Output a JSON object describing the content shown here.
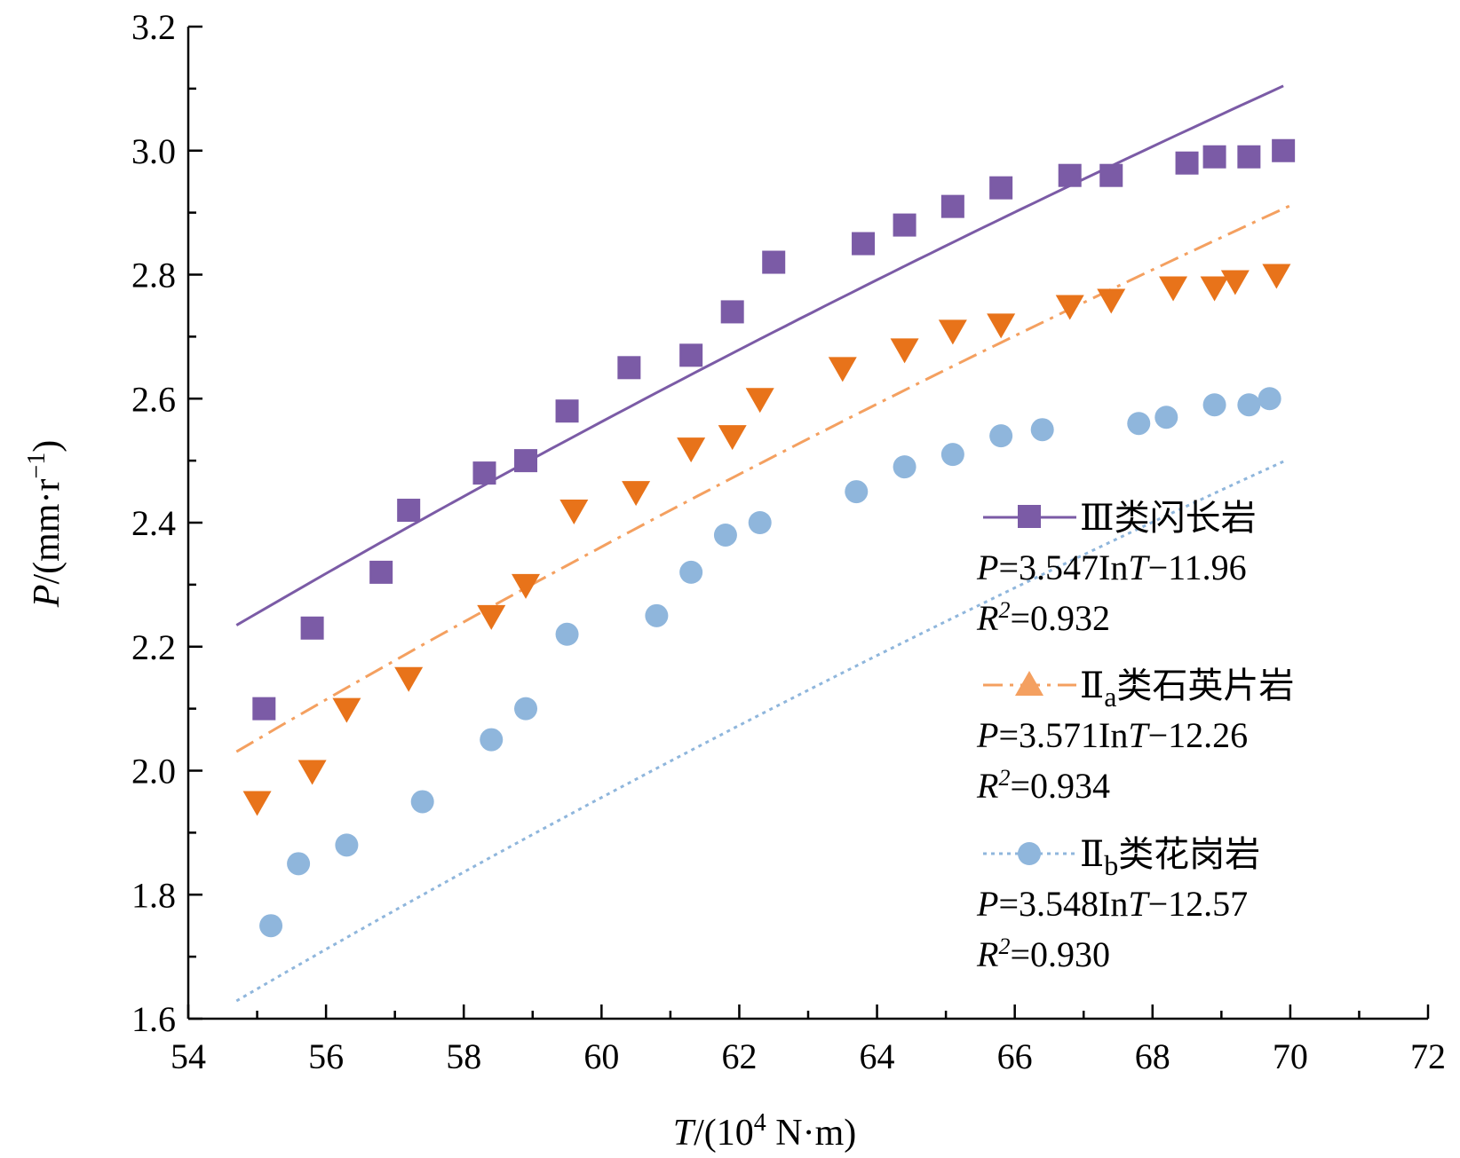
{
  "chart_data": {
    "type": "scatter",
    "xlabel": {
      "var": "T",
      "unit_prefix": "/(10",
      "unit_sup": "4",
      "unit_suffix": " N·m)"
    },
    "ylabel": {
      "var": "P",
      "unit_prefix": "/(mm·r",
      "unit_sup": "−1",
      "unit_suffix": ")"
    },
    "xlim": [
      54,
      72
    ],
    "ylim": [
      1.6,
      3.2
    ],
    "x_ticks": [
      54,
      56,
      58,
      60,
      62,
      64,
      66,
      68,
      70,
      72
    ],
    "y_ticks": [
      1.6,
      1.8,
      2.0,
      2.2,
      2.4,
      2.6,
      2.8,
      3.0,
      3.2
    ],
    "grid": false,
    "legend_position": "right",
    "series": [
      {
        "name": "Ⅲ类闪长岩",
        "name_main": "Ⅲ类闪长岩",
        "name_sub": "",
        "name_rest": "",
        "color": "#7B5BA6",
        "marker": "square",
        "line_style": "solid",
        "equation": {
          "lhs": "P",
          "rhs_a": "=3.547In",
          "var": "T",
          "rhs_b": "−11.96"
        },
        "r2": {
          "lhs": "R",
          "sup": "2",
          "value": "=0.932"
        },
        "fit": {
          "a": 3.547,
          "b": -11.96,
          "x_range": [
            54.7,
            69.9
          ]
        },
        "x": [
          55.1,
          55.8,
          56.8,
          57.2,
          58.3,
          58.9,
          59.5,
          60.4,
          61.3,
          61.9,
          62.5,
          63.8,
          64.4,
          65.1,
          65.8,
          66.8,
          67.4,
          68.5,
          68.9,
          69.4,
          69.9
        ],
        "y": [
          2.1,
          2.23,
          2.32,
          2.42,
          2.48,
          2.5,
          2.58,
          2.65,
          2.67,
          2.74,
          2.82,
          2.85,
          2.88,
          2.91,
          2.94,
          2.96,
          2.96,
          2.98,
          2.99,
          2.99,
          3.0
        ]
      },
      {
        "name": "Ⅱa类石英片岩",
        "name_main": "Ⅱ",
        "name_sub": "a",
        "name_rest": "类石英片岩",
        "color": "#E8731A",
        "legend_color": "#F4A060",
        "marker": "triangle-down",
        "legend_marker": "triangle-up",
        "line_style": "dashdot",
        "equation": {
          "lhs": "P",
          "rhs_a": "=3.571In",
          "var": "T",
          "rhs_b": "−12.26"
        },
        "r2": {
          "lhs": "R",
          "sup": "2",
          "value": "=0.934"
        },
        "fit": {
          "a": 3.571,
          "b": -12.26,
          "x_range": [
            54.7,
            70.0
          ]
        },
        "x": [
          55.0,
          55.8,
          56.3,
          57.2,
          58.4,
          58.9,
          59.6,
          60.5,
          61.3,
          61.9,
          62.3,
          63.5,
          64.4,
          65.1,
          65.8,
          66.8,
          67.4,
          68.3,
          68.9,
          69.2,
          69.8
        ],
        "y": [
          1.95,
          2.0,
          2.1,
          2.15,
          2.25,
          2.3,
          2.42,
          2.45,
          2.52,
          2.54,
          2.6,
          2.65,
          2.68,
          2.71,
          2.72,
          2.75,
          2.76,
          2.78,
          2.78,
          2.79,
          2.8
        ]
      },
      {
        "name": "Ⅱb类花岗岩",
        "name_main": "Ⅱ",
        "name_sub": "b",
        "name_rest": "类花岗岩",
        "color": "#8FB6DC",
        "marker": "circle",
        "line_style": "dotted",
        "equation": {
          "lhs": "P",
          "rhs_a": "=3.548In",
          "var": "T",
          "rhs_b": "−12.57"
        },
        "r2": {
          "lhs": "R",
          "sup": "2",
          "value": "=0.930"
        },
        "fit": {
          "a": 3.548,
          "b": -12.57,
          "x_range": [
            54.7,
            69.9
          ]
        },
        "x": [
          55.2,
          55.6,
          56.3,
          57.4,
          58.4,
          58.9,
          59.5,
          60.8,
          61.3,
          61.8,
          62.3,
          63.7,
          64.4,
          65.1,
          65.8,
          66.4,
          67.8,
          68.2,
          68.9,
          69.4,
          69.7
        ],
        "y": [
          1.75,
          1.85,
          1.88,
          1.95,
          2.05,
          2.1,
          2.22,
          2.25,
          2.32,
          2.38,
          2.4,
          2.45,
          2.49,
          2.51,
          2.54,
          2.55,
          2.56,
          2.57,
          2.59,
          2.59,
          2.6
        ]
      }
    ]
  }
}
